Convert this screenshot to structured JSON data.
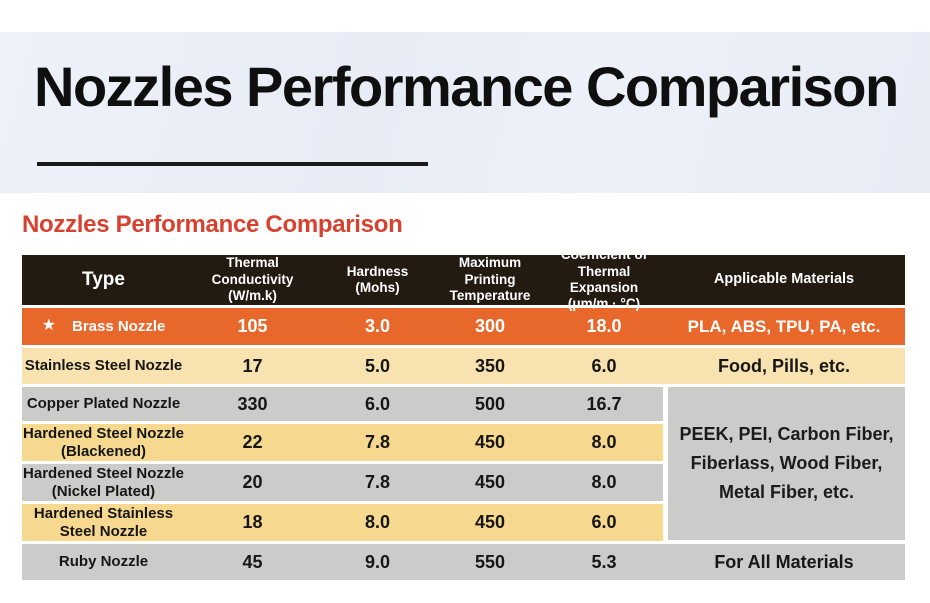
{
  "hero": {
    "title": "Nozzles Performance Comparison"
  },
  "section": {
    "title": "Nozzles Performance Comparison"
  },
  "colors": {
    "hero_background": "#e9edf6",
    "section_title_red": "#d8412f",
    "header_background": "#231a12",
    "featured_row_orange": "#e8682c",
    "row_tan": "#f8e3b0",
    "row_yellow": "#f6d88e",
    "row_gray": "#cbcbc9"
  },
  "table": {
    "headers": [
      "Type",
      "Thermal Conductivity\n(W/m.k)",
      "Hardness\n(Mohs)",
      "Maximum\nPrinting\nTemperature",
      "Coefficient of\nThermal Expansion\n(μm/m · °C)",
      "Applicable Materials"
    ],
    "merged_materials": "PEEK, PEI, Carbon Fiber,\nFiberlass, Wood Fiber,\nMetal Fiber, etc.",
    "rows": [
      {
        "star": "★",
        "type": "Brass Nozzle",
        "thermal": "105",
        "hardness": "3.0",
        "max_temp": "300",
        "coefficient": "18.0",
        "materials": "PLA, ABS, TPU, PA, etc."
      },
      {
        "type": "Stainless Steel Nozzle",
        "thermal": "17",
        "hardness": "5.0",
        "max_temp": "350",
        "coefficient": "6.0",
        "materials": "Food, Pills, etc."
      },
      {
        "type": "Copper Plated Nozzle",
        "thermal": "330",
        "hardness": "6.0",
        "max_temp": "500",
        "coefficient": "16.7"
      },
      {
        "type": "Hardened Steel Nozzle\n(Blackened)",
        "thermal": "22",
        "hardness": "7.8",
        "max_temp": "450",
        "coefficient": "8.0"
      },
      {
        "type": "Hardened Steel Nozzle\n(Nickel Plated)",
        "thermal": "20",
        "hardness": "7.8",
        "max_temp": "450",
        "coefficient": "8.0"
      },
      {
        "type": "Hardened Stainless\nSteel Nozzle",
        "thermal": "18",
        "hardness": "8.0",
        "max_temp": "450",
        "coefficient": "6.0"
      },
      {
        "type": "Ruby Nozzle",
        "thermal": "45",
        "hardness": "9.0",
        "max_temp": "550",
        "coefficient": "5.3",
        "materials": "For All Materials"
      }
    ]
  }
}
